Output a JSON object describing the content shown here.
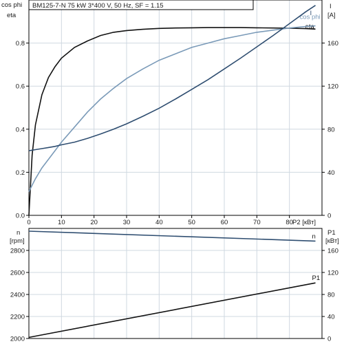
{
  "header": {
    "text": "BM125-7-N   75 kW   3*400 V, 50 Hz, SF = 1.15"
  },
  "colors": {
    "eta": "#111111",
    "cosphi": "#7a9ab8",
    "current": "#2e4d70",
    "speed": "#2e4d70",
    "p1": "#111111"
  },
  "chart_data": [
    {
      "type": "line",
      "x": [
        0,
        1,
        2,
        4,
        6,
        8,
        10,
        14,
        18,
        22,
        26,
        30,
        35,
        40,
        45,
        50,
        55,
        60,
        65,
        70,
        75,
        80,
        85,
        88
      ],
      "xlim": [
        0,
        90
      ],
      "xticks": [
        "0",
        "10",
        "20",
        "30",
        "40",
        "50",
        "60",
        "70",
        "80"
      ],
      "xlabel": "P2 [кВт]",
      "ylim_left": [
        0,
        1.0
      ],
      "yticks_left": [
        "0.0",
        "0.2",
        "0.4",
        "0.6",
        "0.8"
      ],
      "ylabel_left": [
        "cos phi",
        "eta"
      ],
      "ylim_right": [
        0,
        200
      ],
      "yticks_right": [
        "0",
        "40",
        "80",
        "120",
        "160"
      ],
      "ylabel_right": [
        "I",
        "[A]"
      ],
      "series": [
        {
          "name": "eta",
          "axis": "left",
          "values": [
            0.0,
            0.28,
            0.42,
            0.56,
            0.64,
            0.69,
            0.73,
            0.78,
            0.81,
            0.835,
            0.85,
            0.858,
            0.864,
            0.868,
            0.87,
            0.871,
            0.872,
            0.872,
            0.872,
            0.871,
            0.87,
            0.869,
            0.867,
            0.865
          ]
        },
        {
          "name": "cos phi",
          "axis": "left",
          "values": [
            0.11,
            0.14,
            0.17,
            0.22,
            0.26,
            0.3,
            0.34,
            0.41,
            0.48,
            0.54,
            0.59,
            0.635,
            0.68,
            0.72,
            0.75,
            0.78,
            0.8,
            0.82,
            0.835,
            0.85,
            0.86,
            0.87,
            0.877,
            0.88
          ]
        },
        {
          "name": "I",
          "axis": "right",
          "values": [
            60,
            60.5,
            61,
            62,
            63,
            64,
            65.5,
            68,
            71.5,
            75.5,
            80,
            85,
            92,
            99.5,
            108,
            117,
            126,
            136,
            146,
            156.5,
            167,
            178,
            189,
            195
          ]
        }
      ]
    },
    {
      "type": "line",
      "x": [
        0,
        88
      ],
      "xlim": [
        0,
        90
      ],
      "ylim_left": [
        2000,
        3000
      ],
      "yticks_left": [
        "2000",
        "2200",
        "2400",
        "2600",
        "2800"
      ],
      "ylabel_left": [
        "n",
        "[rpm]"
      ],
      "ylim_right": [
        0,
        200
      ],
      "yticks_right": [
        "0",
        "40",
        "80",
        "120",
        "160"
      ],
      "ylabel_right": [
        "P1",
        "[кВт]"
      ],
      "series": [
        {
          "name": "n",
          "axis": "left",
          "values": [
            2975,
            2885
          ]
        },
        {
          "name": "P1",
          "axis": "right",
          "values": [
            2,
            101
          ]
        }
      ]
    }
  ]
}
